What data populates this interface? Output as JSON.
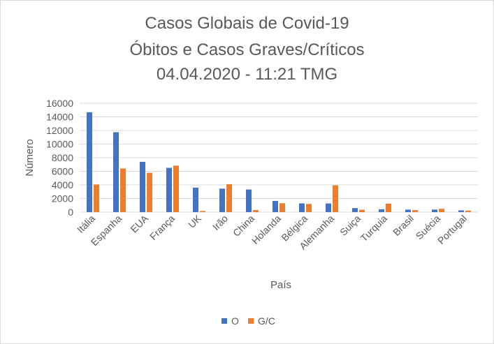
{
  "chart_data": {
    "type": "bar",
    "title_lines": [
      "Casos Globais de Covid-19",
      "Óbitos e Casos Graves/Críticos",
      "04.04.2020 - 11:21 TMG"
    ],
    "xlabel": "País",
    "ylabel": "Número",
    "ylim": [
      0,
      16000
    ],
    "yticks": [
      "16000",
      "14000",
      "12000",
      "10000",
      "8000",
      "6000",
      "4000",
      "2000",
      "0"
    ],
    "categories": [
      "Itália",
      "Espanha",
      "EUA",
      "França",
      "UK",
      "Irão",
      "China",
      "Holanda",
      "Bélgica",
      "Alemanha",
      "Suiça",
      "Turquia",
      "Brasil",
      "Suécia",
      "Portugal"
    ],
    "series": [
      {
        "name": "O",
        "color": "#4472C4",
        "values": [
          14681,
          11744,
          7392,
          6507,
          3605,
          3452,
          3326,
          1651,
          1283,
          1275,
          591,
          425,
          365,
          373,
          266
        ]
      },
      {
        "name": "G/C",
        "color": "#ED7D31",
        "values": [
          4068,
          6416,
          5786,
          6838,
          163,
          4103,
          295,
          1309,
          1205,
          3936,
          348,
          1251,
          296,
          490,
          230
        ]
      }
    ],
    "grid": true,
    "legend": "bottom"
  }
}
